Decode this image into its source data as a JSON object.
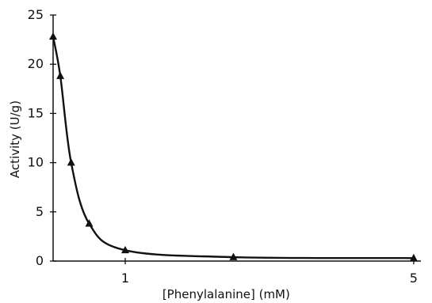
{
  "chart_data": {
    "type": "line",
    "xlabel": "[Phenylalanine] (mM)",
    "ylabel": "Activity (U/g)",
    "xlim": [
      0,
      5.1
    ],
    "ylim": [
      0,
      25
    ],
    "xticks": [
      1,
      5
    ],
    "xtick_labels": [
      "1",
      "5"
    ],
    "yticks": [
      0,
      5,
      10,
      15,
      20,
      25
    ],
    "ytick_labels": [
      "0",
      "5",
      "10",
      "15",
      "20",
      "25"
    ],
    "grid": false,
    "series": [
      {
        "values": [
          {
            "x": 0.0,
            "y": 22.8
          },
          {
            "x": 0.1,
            "y": 18.8
          },
          {
            "x": 0.25,
            "y": 10.0
          },
          {
            "x": 0.5,
            "y": 3.8
          },
          {
            "x": 1.0,
            "y": 1.1
          },
          {
            "x": 2.5,
            "y": 0.4
          },
          {
            "x": 5.0,
            "y": 0.3
          }
        ]
      }
    ]
  }
}
